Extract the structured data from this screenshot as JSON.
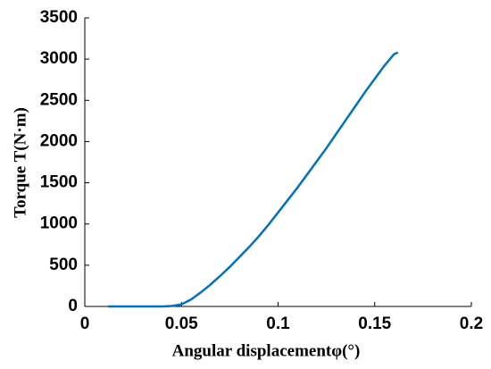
{
  "chart_data": {
    "type": "line",
    "xlabel": "Angular displacementφ(°)",
    "ylabel": "Torque T(N·m)",
    "x": [
      0.012,
      0.02,
      0.03,
      0.04,
      0.045,
      0.05,
      0.055,
      0.06,
      0.065,
      0.07,
      0.075,
      0.08,
      0.085,
      0.09,
      0.095,
      0.1,
      0.105,
      0.11,
      0.115,
      0.12,
      0.125,
      0.13,
      0.135,
      0.14,
      0.145,
      0.15,
      0.155,
      0.16,
      0.162
    ],
    "series": [
      {
        "name": "Torque",
        "color": "#0072bd",
        "values": [
          0,
          0,
          0,
          0,
          5,
          25,
          85,
          170,
          265,
          370,
          480,
          600,
          720,
          850,
          990,
          1140,
          1290,
          1440,
          1600,
          1760,
          1920,
          2090,
          2260,
          2430,
          2600,
          2760,
          2920,
          3060,
          3080
        ]
      }
    ],
    "xlim": [
      0,
      0.2
    ],
    "xticks": [
      0,
      0.05,
      0.1,
      0.15,
      0.2
    ],
    "ylim": [
      0,
      3500
    ],
    "yticks": [
      0,
      500,
      1000,
      1500,
      2000,
      2500,
      3000,
      3500
    ]
  }
}
